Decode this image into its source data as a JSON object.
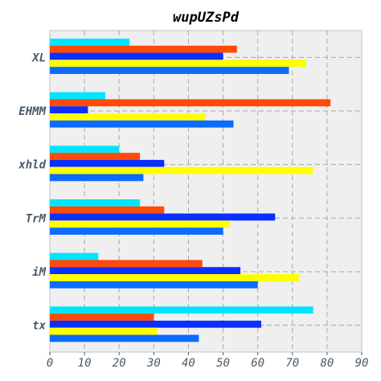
{
  "chart_data": {
    "type": "bar",
    "orientation": "horizontal",
    "title": "wupUZsPd",
    "xlabel": "",
    "ylabel": "",
    "xlim": [
      0,
      90
    ],
    "x_ticks": [
      0,
      10,
      20,
      30,
      40,
      50,
      60,
      70,
      80,
      90
    ],
    "grid": true,
    "legend": "none",
    "categories": [
      "XL",
      "EHMM",
      "xhld",
      "TrM",
      "iM",
      "tx"
    ],
    "series": [
      {
        "color": "#00e5ff",
        "values": [
          23,
          16,
          20,
          26,
          14,
          76
        ]
      },
      {
        "color": "#ff4a0a",
        "values": [
          54,
          81,
          26,
          33,
          44,
          30
        ]
      },
      {
        "color": "#0b2fff",
        "values": [
          50,
          11,
          33,
          65,
          55,
          61
        ]
      },
      {
        "color": "#ffff00",
        "values": [
          74,
          45,
          76,
          52,
          72,
          31
        ]
      },
      {
        "color": "#0b6cff",
        "values": [
          69,
          53,
          27,
          50,
          60,
          43
        ]
      }
    ]
  }
}
